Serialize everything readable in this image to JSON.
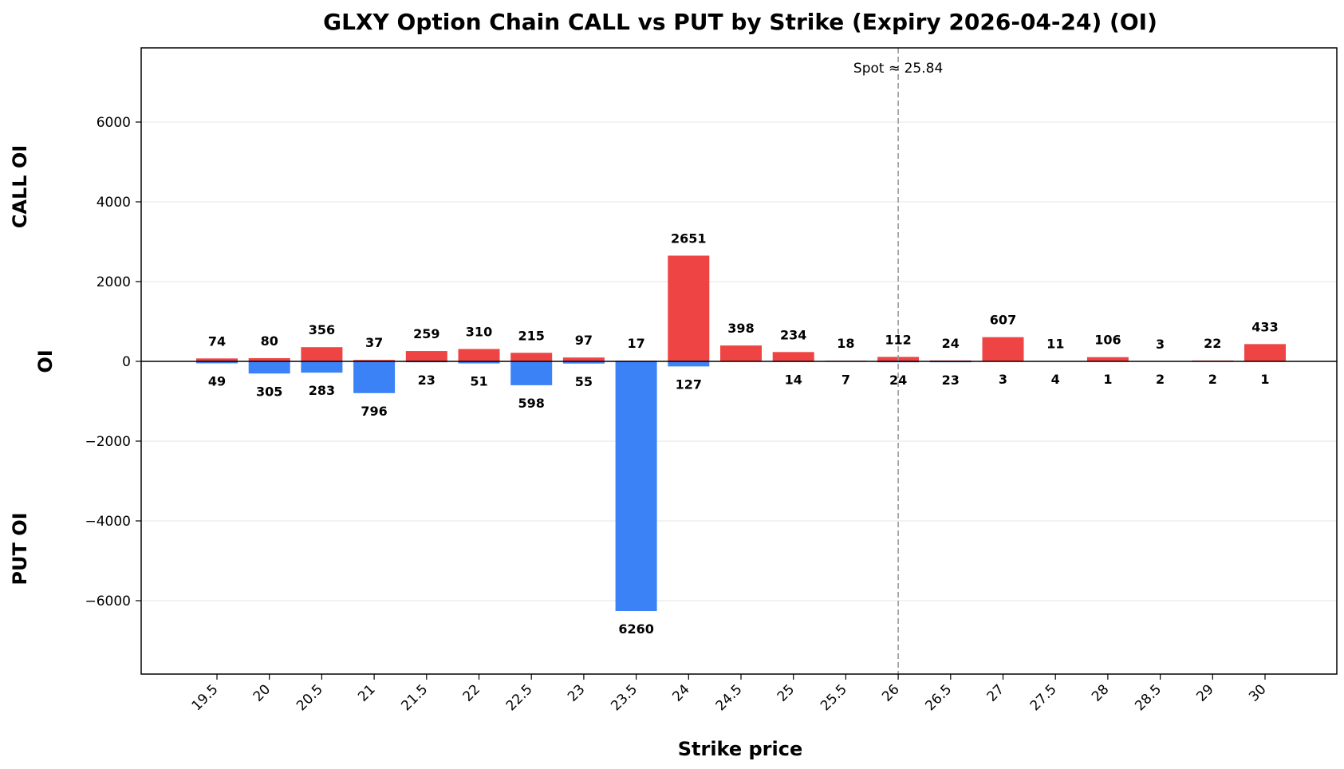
{
  "chart_data": {
    "type": "bar",
    "title": "GLXY Option Chain CALL vs PUT by Strike (Expiry 2026-04-24) (OI)",
    "xlabel": "Strike price",
    "ylabel": "OI",
    "side_labels": {
      "top": "CALL OI",
      "bottom": "PUT OI"
    },
    "ylim": [
      -7850,
      7850
    ],
    "yticks": [
      6000,
      4000,
      2000,
      0,
      -2000,
      -4000,
      -6000
    ],
    "ytick_labels": [
      "6000",
      "4000",
      "2000",
      "0",
      "−2000",
      "−4000",
      "−6000"
    ],
    "categories": [
      "19.5",
      "20",
      "20.5",
      "21",
      "21.5",
      "22",
      "22.5",
      "23",
      "23.5",
      "24",
      "24.5",
      "25",
      "25.5",
      "26",
      "26.5",
      "27",
      "27.5",
      "28",
      "28.5",
      "29",
      "30"
    ],
    "series": [
      {
        "key": "call",
        "color": "#ef4444",
        "values": [
          74,
          80,
          356,
          37,
          259,
          310,
          215,
          97,
          17,
          2651,
          398,
          234,
          18,
          112,
          24,
          607,
          11,
          106,
          3,
          22,
          433
        ]
      },
      {
        "key": "put",
        "color": "#3b82f6",
        "values": [
          49,
          305,
          283,
          796,
          23,
          51,
          598,
          55,
          6260,
          127,
          0,
          14,
          7,
          24,
          23,
          3,
          4,
          1,
          2,
          2,
          1
        ]
      }
    ],
    "value_labels": {
      "call": [
        "74",
        "80",
        "356",
        "37",
        "259",
        "310",
        "215",
        "97",
        "17",
        "2651",
        "398",
        "234",
        "18",
        "112",
        "24",
        "607",
        "11",
        "106",
        "3",
        "22",
        "433"
      ],
      "put": [
        "49",
        "305",
        "283",
        "796",
        "23",
        "51",
        "598",
        "55",
        "6260",
        "127",
        "",
        "14",
        "7",
        "24",
        "23",
        "3",
        "4",
        "1",
        "2",
        "2",
        "1"
      ]
    },
    "spot": {
      "value": 26,
      "label": "Spot ≈ 25.84"
    },
    "grid": true,
    "legend": "none"
  }
}
